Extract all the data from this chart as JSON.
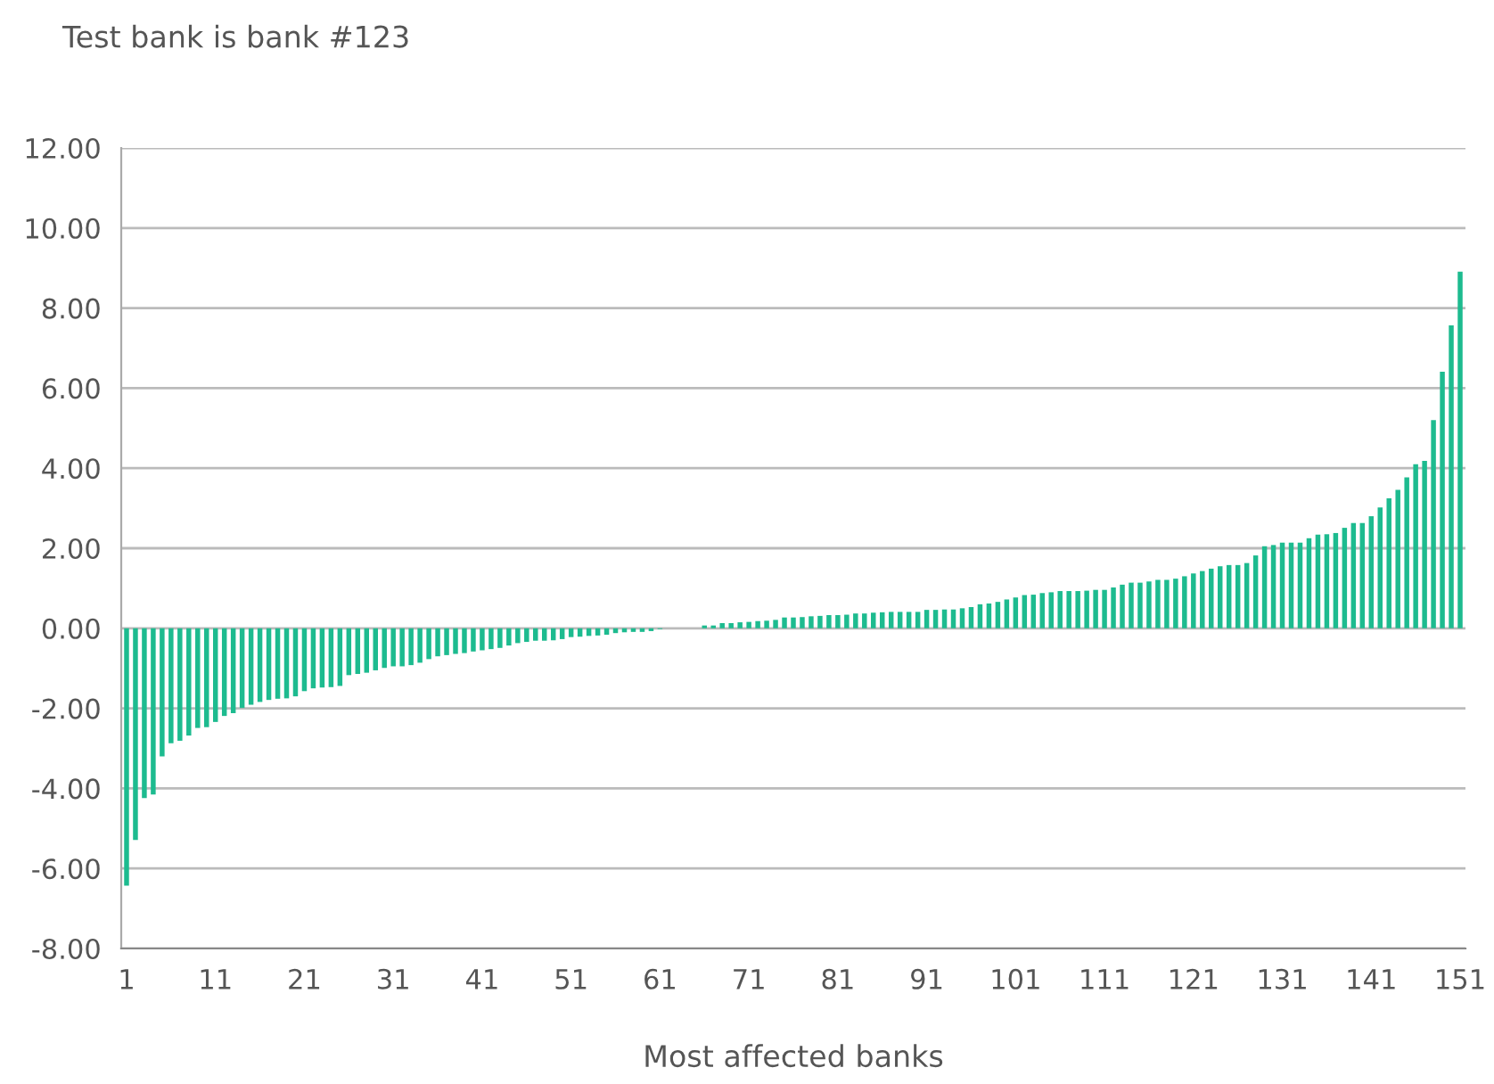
{
  "chart_data": {
    "type": "bar",
    "title": "Test bank is bank #123",
    "xlabel": "Most affected banks",
    "categories": [
      "1",
      null,
      null,
      null,
      null,
      null,
      null,
      null,
      null,
      null,
      "11",
      null,
      null,
      null,
      null,
      null,
      null,
      null,
      null,
      null,
      "21",
      null,
      null,
      null,
      null,
      null,
      null,
      null,
      null,
      null,
      "31",
      null,
      null,
      null,
      null,
      null,
      null,
      null,
      null,
      null,
      "41",
      null,
      null,
      null,
      null,
      null,
      null,
      null,
      null,
      null,
      "51",
      null,
      null,
      null,
      null,
      null,
      null,
      null,
      null,
      null,
      "61",
      null,
      null,
      null,
      null,
      null,
      null,
      null,
      null,
      null,
      "71",
      null,
      null,
      null,
      null,
      null,
      null,
      null,
      null,
      null,
      "81",
      null,
      null,
      null,
      null,
      null,
      null,
      null,
      null,
      null,
      "91",
      null,
      null,
      null,
      null,
      null,
      null,
      null,
      null,
      null,
      "101",
      null,
      null,
      null,
      null,
      null,
      null,
      null,
      null,
      null,
      "111",
      null,
      null,
      null,
      null,
      null,
      null,
      null,
      null,
      null,
      "121",
      null,
      null,
      null,
      null,
      null,
      null,
      null,
      null,
      null,
      "131",
      null,
      null,
      null,
      null,
      null,
      null,
      null,
      null,
      null,
      "141",
      null,
      null,
      null,
      null,
      null,
      null,
      null,
      null,
      null,
      "151"
    ],
    "values": [
      -6.43,
      -5.29,
      -4.24,
      -4.15,
      -3.2,
      -2.87,
      -2.81,
      -2.68,
      -2.49,
      -2.47,
      -2.34,
      -2.19,
      -2.12,
      -1.99,
      -1.91,
      -1.84,
      -1.79,
      -1.76,
      -1.75,
      -1.7,
      -1.57,
      -1.5,
      -1.48,
      -1.47,
      -1.44,
      -1.17,
      -1.14,
      -1.11,
      -1.05,
      -0.99,
      -0.95,
      -0.95,
      -0.92,
      -0.86,
      -0.77,
      -0.7,
      -0.67,
      -0.64,
      -0.62,
      -0.58,
      -0.55,
      -0.52,
      -0.49,
      -0.43,
      -0.37,
      -0.34,
      -0.31,
      -0.31,
      -0.3,
      -0.27,
      -0.22,
      -0.21,
      -0.19,
      -0.18,
      -0.16,
      -0.12,
      -0.1,
      -0.09,
      -0.09,
      -0.07,
      -0.02,
      null,
      null,
      0,
      0,
      0.07,
      0.07,
      0.13,
      0.13,
      0.15,
      0.16,
      0.18,
      0.19,
      0.21,
      0.27,
      0.27,
      0.28,
      0.3,
      0.31,
      0.33,
      0.33,
      0.34,
      0.37,
      0.37,
      0.39,
      0.4,
      0.41,
      0.41,
      0.41,
      0.41,
      0.46,
      0.46,
      0.47,
      0.47,
      0.5,
      0.53,
      0.6,
      0.62,
      0.66,
      0.72,
      0.77,
      0.83,
      0.84,
      0.88,
      0.9,
      0.93,
      0.93,
      0.93,
      0.94,
      0.96,
      0.96,
      1.02,
      1.09,
      1.14,
      1.14,
      1.17,
      1.21,
      1.21,
      1.24,
      1.3,
      1.37,
      1.43,
      1.49,
      1.55,
      1.58,
      1.58,
      1.63,
      1.82,
      2.05,
      2.08,
      2.14,
      2.14,
      2.14,
      2.25,
      2.34,
      2.35,
      2.38,
      2.51,
      2.63,
      2.63,
      2.8,
      3.02,
      3.25,
      3.46,
      3.77,
      4.1,
      4.18,
      5.2,
      6.41,
      7.57,
      8.91
    ],
    "color": "#1dbb8f",
    "ylim": [
      -8,
      12
    ],
    "yticks": [
      {
        "value": -8,
        "label": "-8.00"
      },
      {
        "value": -6,
        "label": "-6.00"
      },
      {
        "value": -4,
        "label": "-4.00"
      },
      {
        "value": -2,
        "label": "-2.00"
      },
      {
        "value": 0,
        "label": "0.00"
      },
      {
        "value": 2,
        "label": "2.00"
      },
      {
        "value": 4,
        "label": "4.00"
      },
      {
        "value": 6,
        "label": "6.00"
      },
      {
        "value": 8,
        "label": "8.00"
      },
      {
        "value": 10,
        "label": "10.00"
      },
      {
        "value": 12,
        "label": "12.00"
      }
    ],
    "grid": "y"
  }
}
